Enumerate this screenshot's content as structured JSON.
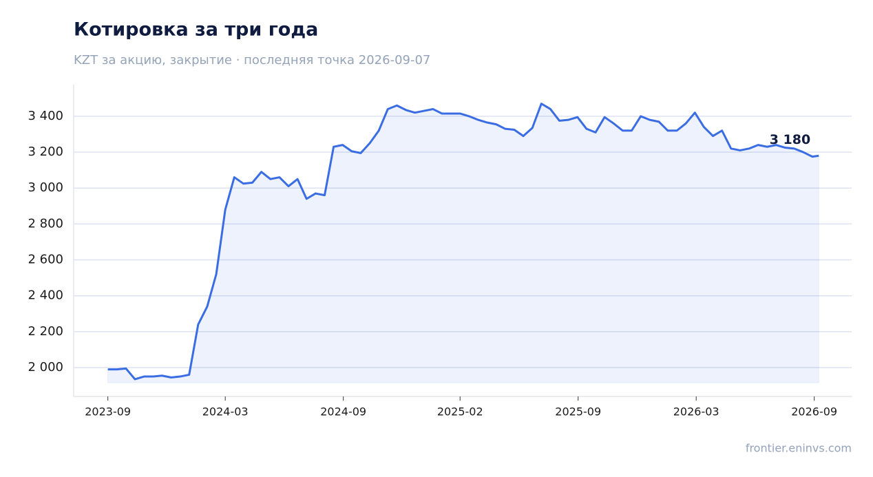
{
  "chart_data": {
    "type": "line",
    "title": "Котировка за три года",
    "subtitle": "KZT за акцию, закрытие · последняя точка 2026-09-07",
    "source": "frontier.eninvs.com",
    "color": "#3a6de3",
    "grid": true,
    "x": [
      "2023-09-01",
      "2023-09-15",
      "2023-09-29",
      "2023-10-13",
      "2023-10-27",
      "2023-11-10",
      "2023-11-24",
      "2023-12-08",
      "2023-12-22",
      "2024-01-05",
      "2024-01-19",
      "2024-02-02",
      "2024-02-16",
      "2024-03-01",
      "2024-03-15",
      "2024-03-29",
      "2024-04-12",
      "2024-04-26",
      "2024-05-10",
      "2024-05-24",
      "2024-06-07",
      "2024-06-21",
      "2024-07-05",
      "2024-07-19",
      "2024-08-02",
      "2024-08-16",
      "2024-08-30",
      "2024-09-13",
      "2024-09-27",
      "2024-10-11",
      "2024-10-25",
      "2024-11-08",
      "2024-11-22",
      "2024-12-06",
      "2024-12-20",
      "2025-01-03",
      "2025-01-17",
      "2025-01-31",
      "2025-02-14",
      "2025-02-28",
      "2025-03-14",
      "2025-03-28",
      "2025-04-11",
      "2025-04-25",
      "2025-05-09",
      "2025-05-23",
      "2025-06-06",
      "2025-06-20",
      "2025-07-04",
      "2025-07-18",
      "2025-08-01",
      "2025-08-15",
      "2025-08-29",
      "2025-09-12",
      "2025-09-26",
      "2025-10-10",
      "2025-10-24",
      "2025-11-07",
      "2025-11-21",
      "2025-12-05",
      "2025-12-19",
      "2026-01-02",
      "2026-01-16",
      "2026-01-30",
      "2026-02-13",
      "2026-02-27",
      "2026-03-13",
      "2026-03-27",
      "2026-04-10",
      "2026-04-24",
      "2026-05-08",
      "2026-05-22",
      "2026-06-05",
      "2026-06-19",
      "2026-07-03",
      "2026-07-17",
      "2026-07-31",
      "2026-08-14",
      "2026-08-28",
      "2026-09-07"
    ],
    "values": [
      1990,
      1990,
      1995,
      1935,
      1950,
      1950,
      1955,
      1945,
      1950,
      1960,
      2240,
      2340,
      2520,
      2880,
      3060,
      3025,
      3030,
      3090,
      3050,
      3060,
      3010,
      3050,
      2940,
      2970,
      2960,
      3230,
      3240,
      3205,
      3195,
      3250,
      3320,
      3440,
      3460,
      3435,
      3420,
      3430,
      3440,
      3415,
      3415,
      3415,
      3400,
      3380,
      3365,
      3355,
      3330,
      3325,
      3290,
      3335,
      3470,
      3440,
      3375,
      3380,
      3395,
      3330,
      3310,
      3395,
      3360,
      3320,
      3320,
      3400,
      3380,
      3370,
      3320,
      3320,
      3360,
      3420,
      3340,
      3290,
      3320,
      3220,
      3210,
      3220,
      3240,
      3230,
      3240,
      3225,
      3220,
      3200,
      3175,
      3180
    ],
    "annotation": {
      "x": "2026-09-07",
      "y": 3180,
      "label": "3 180"
    },
    "xlim": [
      "2023-07-10",
      "2026-10-28"
    ],
    "xticks": [
      {
        "value": "2023-09-01",
        "label": "2023-09"
      },
      {
        "value": "2024-03-01",
        "label": "2024-03"
      },
      {
        "value": "2024-08-31",
        "label": "2024-09"
      },
      {
        "value": "2025-02-28",
        "label": "2025-02"
      },
      {
        "value": "2025-08-30",
        "label": "2025-09"
      },
      {
        "value": "2026-03-01",
        "label": "2026-03"
      },
      {
        "value": "2026-08-31",
        "label": "2026-09"
      }
    ],
    "ylim": [
      1839,
      3576
    ],
    "yticks": [
      {
        "value": 2000,
        "label": "2 000"
      },
      {
        "value": 2200,
        "label": "2 200"
      },
      {
        "value": 2400,
        "label": "2 400"
      },
      {
        "value": 2600,
        "label": "2 600"
      },
      {
        "value": 2800,
        "label": "2 800"
      },
      {
        "value": 3000,
        "label": "3 000"
      },
      {
        "value": 3200,
        "label": "3 200"
      },
      {
        "value": 3400,
        "label": "3 400"
      }
    ]
  }
}
